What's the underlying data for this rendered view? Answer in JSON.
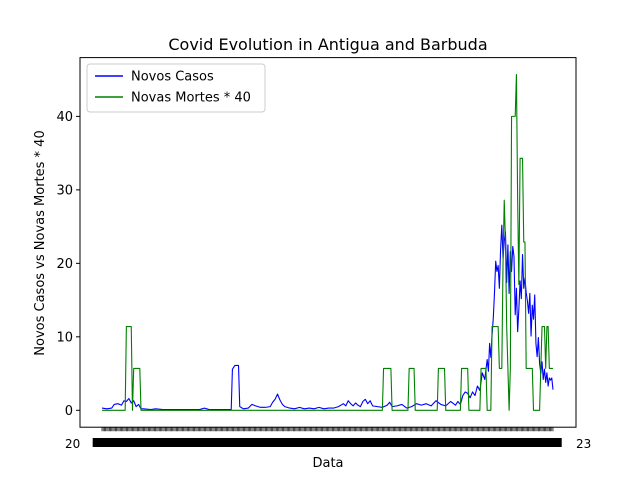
{
  "chart_data": {
    "type": "line",
    "title": "Covid Evolution in Antigua and Barbuda",
    "xlabel": "Data",
    "ylabel": "Novos Casos vs Novas Mortes * 40",
    "x_tick_labels_left": "20",
    "x_tick_labels_right": "23",
    "ylim": [
      -2.3,
      48.0
    ],
    "y_ticks": [
      0,
      10,
      20,
      30,
      40
    ],
    "grid": false,
    "legend_position": "upper left",
    "series": [
      {
        "name": "Novos Casos",
        "color": "#0000ff",
        "points": [
          [
            0,
            0.3
          ],
          [
            4,
            0.2
          ],
          [
            8,
            0.3
          ],
          [
            10,
            0.8
          ],
          [
            13,
            0.9
          ],
          [
            16,
            0.7
          ],
          [
            18,
            1.3
          ],
          [
            20,
            1.2
          ],
          [
            22,
            1.6
          ],
          [
            24,
            1.0
          ],
          [
            26,
            1.3
          ],
          [
            28,
            0.5
          ],
          [
            30,
            0.8
          ],
          [
            32,
            0.2
          ],
          [
            34,
            0.2
          ],
          [
            40,
            0.1
          ],
          [
            44,
            0.2
          ],
          [
            50,
            0.1
          ],
          [
            60,
            0.1
          ],
          [
            70,
            0.1
          ],
          [
            80,
            0.1
          ],
          [
            84,
            0.3
          ],
          [
            88,
            0.1
          ],
          [
            100,
            0.1
          ],
          [
            106,
            0.1
          ],
          [
            107,
            5.6
          ],
          [
            109,
            6.1
          ],
          [
            112,
            6.1
          ],
          [
            113,
            0.5
          ],
          [
            116,
            0.2
          ],
          [
            120,
            0.3
          ],
          [
            123,
            0.8
          ],
          [
            126,
            0.6
          ],
          [
            130,
            0.4
          ],
          [
            134,
            0.4
          ],
          [
            138,
            0.5
          ],
          [
            140,
            1.1
          ],
          [
            142,
            1.5
          ],
          [
            144,
            2.2
          ],
          [
            146,
            1.4
          ],
          [
            148,
            0.8
          ],
          [
            150,
            0.5
          ],
          [
            154,
            0.3
          ],
          [
            158,
            0.2
          ],
          [
            162,
            0.4
          ],
          [
            166,
            0.2
          ],
          [
            170,
            0.3
          ],
          [
            174,
            0.2
          ],
          [
            178,
            0.4
          ],
          [
            182,
            0.2
          ],
          [
            186,
            0.3
          ],
          [
            190,
            0.3
          ],
          [
            194,
            0.5
          ],
          [
            198,
            0.9
          ],
          [
            200,
            0.6
          ],
          [
            202,
            1.3
          ],
          [
            204,
            0.9
          ],
          [
            206,
            0.6
          ],
          [
            208,
            1.0
          ],
          [
            210,
            0.7
          ],
          [
            212,
            0.5
          ],
          [
            214,
            1.2
          ],
          [
            216,
            1.5
          ],
          [
            218,
            0.9
          ],
          [
            220,
            1.3
          ],
          [
            222,
            0.6
          ],
          [
            226,
            0.5
          ],
          [
            230,
            0.4
          ],
          [
            234,
            0.7
          ],
          [
            236,
            1.1
          ],
          [
            238,
            0.5
          ],
          [
            242,
            0.6
          ],
          [
            246,
            0.8
          ],
          [
            250,
            0.3
          ],
          [
            254,
            0.5
          ],
          [
            258,
            0.9
          ],
          [
            262,
            0.7
          ],
          [
            266,
            0.9
          ],
          [
            270,
            0.6
          ],
          [
            274,
            1.3
          ],
          [
            278,
            0.8
          ],
          [
            282,
            0.6
          ],
          [
            286,
            1.2
          ],
          [
            290,
            0.7
          ],
          [
            292,
            1.2
          ],
          [
            294,
            0.8
          ],
          [
            296,
            2.0
          ],
          [
            298,
            2.5
          ],
          [
            300,
            2.3
          ],
          [
            302,
            1.7
          ],
          [
            304,
            2.5
          ],
          [
            306,
            2.0
          ],
          [
            308,
            3.3
          ],
          [
            310,
            2.7
          ],
          [
            312,
            5.1
          ],
          [
            314,
            4.2
          ],
          [
            316,
            6.9
          ],
          [
            317,
            5.3
          ],
          [
            318,
            9.1
          ],
          [
            319,
            7.2
          ],
          [
            320,
            10.2
          ],
          [
            321,
            12.5
          ],
          [
            322,
            16.0
          ],
          [
            323,
            20.3
          ],
          [
            324,
            18.9
          ],
          [
            325,
            19.7
          ],
          [
            326,
            16.6
          ],
          [
            327,
            21.9
          ],
          [
            328,
            25.2
          ],
          [
            329,
            20.7
          ],
          [
            330,
            23.0
          ],
          [
            331,
            24.3
          ],
          [
            332,
            17.4
          ],
          [
            333,
            22.5
          ],
          [
            334,
            15.9
          ],
          [
            335,
            21.6
          ],
          [
            336,
            18.9
          ],
          [
            337,
            22.3
          ],
          [
            338,
            20.9
          ],
          [
            339,
            13.0
          ],
          [
            340,
            16.6
          ],
          [
            341,
            10.7
          ],
          [
            342,
            13.8
          ],
          [
            343,
            17.6
          ],
          [
            344,
            15.2
          ],
          [
            345,
            21.2
          ],
          [
            346,
            16.6
          ],
          [
            347,
            18.0
          ],
          [
            348,
            16.0
          ],
          [
            349,
            14.9
          ],
          [
            350,
            13.2
          ],
          [
            351,
            15.9
          ],
          [
            352,
            10.1
          ],
          [
            353,
            14.3
          ],
          [
            354,
            12.4
          ],
          [
            355,
            15.7
          ],
          [
            356,
            9.1
          ],
          [
            357,
            7.3
          ],
          [
            358,
            9.9
          ],
          [
            359,
            6.4
          ],
          [
            360,
            5.0
          ],
          [
            361,
            6.6
          ],
          [
            362,
            4.2
          ],
          [
            363,
            5.6
          ],
          [
            364,
            3.8
          ],
          [
            365,
            5.1
          ],
          [
            366,
            3.3
          ],
          [
            367,
            4.4
          ],
          [
            368,
            4.1
          ],
          [
            369,
            4.4
          ],
          [
            370,
            2.8
          ]
        ]
      },
      {
        "name": "Novas Mortes * 40",
        "color": "#008000",
        "points": [
          [
            0,
            0
          ],
          [
            19,
            0
          ],
          [
            20,
            11.4
          ],
          [
            24,
            11.4
          ],
          [
            25,
            0
          ],
          [
            26,
            5.7
          ],
          [
            31,
            5.7
          ],
          [
            32,
            0
          ],
          [
            230,
            0
          ],
          [
            231,
            5.7
          ],
          [
            237,
            5.7
          ],
          [
            238,
            0
          ],
          [
            251,
            0
          ],
          [
            252,
            5.7
          ],
          [
            256,
            5.7
          ],
          [
            257,
            0
          ],
          [
            275,
            0
          ],
          [
            276,
            5.7
          ],
          [
            281,
            5.7
          ],
          [
            282,
            0
          ],
          [
            294,
            0
          ],
          [
            295,
            5.7
          ],
          [
            300,
            5.7
          ],
          [
            301,
            0
          ],
          [
            310,
            0
          ],
          [
            311,
            5.7
          ],
          [
            315,
            5.7
          ],
          [
            316,
            0
          ],
          [
            319,
            0
          ],
          [
            320,
            11.4
          ],
          [
            325,
            11.4
          ],
          [
            326,
            5.7
          ],
          [
            328,
            5.7
          ],
          [
            329,
            20.0
          ],
          [
            330,
            28.6
          ],
          [
            331,
            22.9
          ],
          [
            332,
            11.4
          ],
          [
            333,
            5.7
          ],
          [
            334,
            0
          ],
          [
            335,
            5.7
          ],
          [
            336,
            40.0
          ],
          [
            339,
            40.0
          ],
          [
            340,
            45.7
          ],
          [
            341,
            28.6
          ],
          [
            342,
            17.1
          ],
          [
            343,
            34.3
          ],
          [
            345,
            34.3
          ],
          [
            346,
            22.9
          ],
          [
            347,
            22.9
          ],
          [
            348,
            5.7
          ],
          [
            353,
            5.7
          ],
          [
            354,
            0
          ],
          [
            359,
            0
          ],
          [
            360,
            5.7
          ],
          [
            361,
            11.4
          ],
          [
            363,
            11.4
          ],
          [
            364,
            5.7
          ],
          [
            365,
            11.4
          ],
          [
            366,
            11.4
          ],
          [
            367,
            5.7
          ],
          [
            370,
            5.7
          ]
        ]
      }
    ]
  }
}
